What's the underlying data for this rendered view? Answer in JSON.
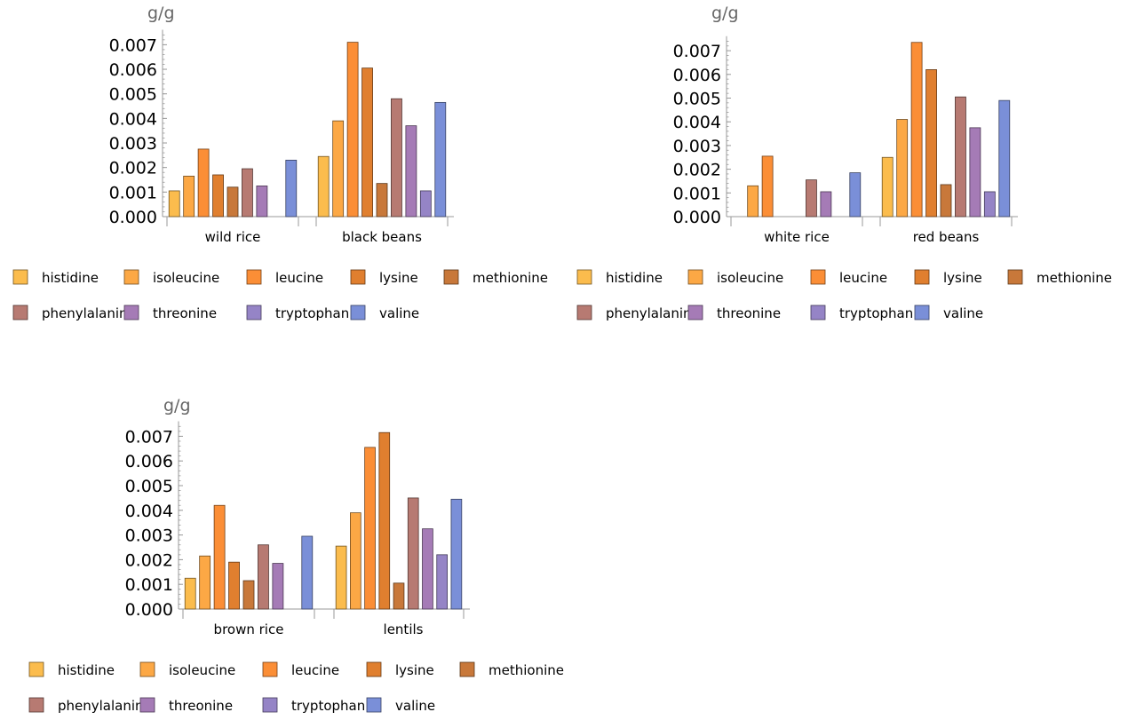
{
  "chart_data": [
    {
      "type": "bar",
      "ylabel": "g/g",
      "ylim": [
        0,
        0.0075
      ],
      "yticks": [
        "0.000",
        "0.001",
        "0.002",
        "0.003",
        "0.004",
        "0.005",
        "0.006",
        "0.007"
      ],
      "categories": [
        "wild rice",
        "black beans"
      ],
      "series": [
        {
          "name": "histidine",
          "values": [
            0.00105,
            0.00245
          ]
        },
        {
          "name": "isoleucine",
          "values": [
            0.00165,
            0.0039
          ]
        },
        {
          "name": "leucine",
          "values": [
            0.00275,
            0.0071
          ]
        },
        {
          "name": "lysine",
          "values": [
            0.0017,
            0.00605
          ]
        },
        {
          "name": "methionine",
          "values": [
            0.0012,
            0.00135
          ]
        },
        {
          "name": "phenylalanine",
          "values": [
            0.00195,
            0.0048
          ]
        },
        {
          "name": "threonine",
          "values": [
            0.00125,
            0.0037
          ]
        },
        {
          "name": "tryptophan",
          "values": [
            0,
            0.00105
          ]
        },
        {
          "name": "valine",
          "values": [
            0.0023,
            0.00465
          ]
        }
      ]
    },
    {
      "type": "bar",
      "ylabel": "g/g",
      "ylim": [
        0,
        0.0075
      ],
      "yticks": [
        "0.000",
        "0.001",
        "0.002",
        "0.003",
        "0.004",
        "0.005",
        "0.006",
        "0.007"
      ],
      "categories": [
        "white rice",
        "red beans"
      ],
      "series": [
        {
          "name": "histidine",
          "values": [
            0,
            0.0025
          ]
        },
        {
          "name": "isoleucine",
          "values": [
            0.0013,
            0.0041
          ]
        },
        {
          "name": "leucine",
          "values": [
            0.00255,
            0.00735
          ]
        },
        {
          "name": "lysine",
          "values": [
            0,
            0.0062
          ]
        },
        {
          "name": "methionine",
          "values": [
            0,
            0.00135
          ]
        },
        {
          "name": "phenylalanine",
          "values": [
            0.00155,
            0.00505
          ]
        },
        {
          "name": "threonine",
          "values": [
            0.00105,
            0.00375
          ]
        },
        {
          "name": "tryptophan",
          "values": [
            0,
            0.00105
          ]
        },
        {
          "name": "valine",
          "values": [
            0.00185,
            0.0049
          ]
        }
      ]
    },
    {
      "type": "bar",
      "ylabel": "g/g",
      "ylim": [
        0,
        0.0075
      ],
      "yticks": [
        "0.000",
        "0.001",
        "0.002",
        "0.003",
        "0.004",
        "0.005",
        "0.006",
        "0.007"
      ],
      "categories": [
        "brown rice",
        "lentils"
      ],
      "series": [
        {
          "name": "histidine",
          "values": [
            0.00125,
            0.00255
          ]
        },
        {
          "name": "isoleucine",
          "values": [
            0.00215,
            0.0039
          ]
        },
        {
          "name": "leucine",
          "values": [
            0.0042,
            0.00655
          ]
        },
        {
          "name": "lysine",
          "values": [
            0.0019,
            0.00715
          ]
        },
        {
          "name": "methionine",
          "values": [
            0.00115,
            0.00105
          ]
        },
        {
          "name": "phenylalanine",
          "values": [
            0.0026,
            0.0045
          ]
        },
        {
          "name": "threonine",
          "values": [
            0.00185,
            0.00325
          ]
        },
        {
          "name": "tryptophan",
          "values": [
            0,
            0.0022
          ]
        },
        {
          "name": "valine",
          "values": [
            0.00295,
            0.00445
          ]
        }
      ]
    }
  ],
  "colors": {
    "histidine": "#fbbc4d",
    "isoleucine": "#fca845",
    "leucine": "#fb8e36",
    "lysine": "#e07f2f",
    "methionine": "#c8783a",
    "phenylalanine": "#b77a72",
    "threonine": "#a57bb6",
    "tryptophan": "#9584c6",
    "valine": "#7a8fd8"
  }
}
